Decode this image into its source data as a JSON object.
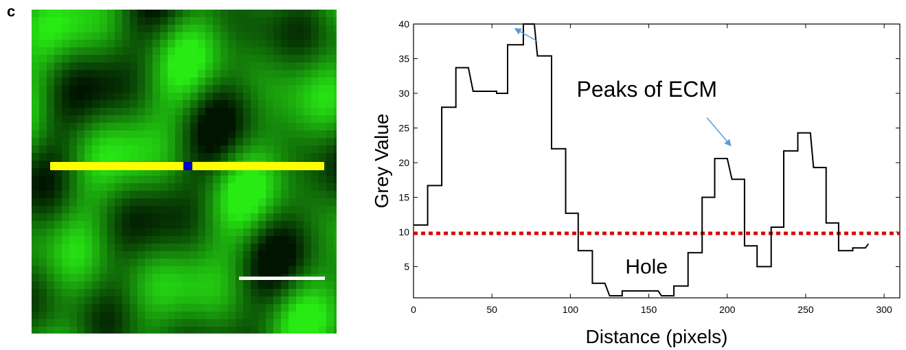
{
  "panel_label": "c",
  "image_panel": {
    "description_colors": {
      "profile_line": "#ffff00",
      "marker": "#0000cc",
      "scale_bar": "#ffffff",
      "signal": "#00e000"
    }
  },
  "chart_data": {
    "type": "line",
    "xlabel": "Distance (pixels)",
    "ylabel": "Grey Value",
    "xlim": [
      0,
      310
    ],
    "ylim": [
      0.5,
      40
    ],
    "xticks": [
      0,
      50,
      100,
      150,
      200,
      250,
      300
    ],
    "yticks": [
      5,
      10,
      15,
      20,
      25,
      30,
      35,
      40
    ],
    "grid": false,
    "series": [
      {
        "color": "#000000",
        "points": [
          [
            0,
            11
          ],
          [
            9,
            11
          ],
          [
            9,
            16.7
          ],
          [
            18,
            16.7
          ],
          [
            18,
            28
          ],
          [
            27,
            28
          ],
          [
            27,
            33.7
          ],
          [
            35,
            33.7
          ],
          [
            38,
            30.3
          ],
          [
            53,
            30.3
          ],
          [
            53,
            30
          ],
          [
            60,
            30
          ],
          [
            60,
            37
          ],
          [
            70,
            37
          ],
          [
            70,
            40
          ],
          [
            77,
            40
          ],
          [
            79,
            35.4
          ],
          [
            88,
            35.4
          ],
          [
            88,
            22
          ],
          [
            97,
            22
          ],
          [
            97,
            12.7
          ],
          [
            105,
            12.7
          ],
          [
            105,
            7.3
          ],
          [
            114,
            7.3
          ],
          [
            114,
            2.6
          ],
          [
            122,
            2.6
          ],
          [
            125,
            0.8
          ],
          [
            133,
            0.8
          ],
          [
            133,
            1.5
          ],
          [
            156,
            1.5
          ],
          [
            158,
            0.8
          ],
          [
            166,
            0.8
          ],
          [
            166,
            2.2
          ],
          [
            175,
            2.2
          ],
          [
            175,
            7
          ],
          [
            184,
            7
          ],
          [
            184,
            15
          ],
          [
            192,
            15
          ],
          [
            192,
            20.6
          ],
          [
            200,
            20.6
          ],
          [
            203,
            17.6
          ],
          [
            211,
            17.6
          ],
          [
            211,
            8
          ],
          [
            219,
            8
          ],
          [
            219,
            5
          ],
          [
            228,
            5
          ],
          [
            228,
            10.7
          ],
          [
            236,
            10.7
          ],
          [
            236,
            21.7
          ],
          [
            245,
            21.7
          ],
          [
            245,
            24.3
          ],
          [
            253,
            24.3
          ],
          [
            255,
            19.3
          ],
          [
            263,
            19.3
          ],
          [
            263,
            11.3
          ],
          [
            271,
            11.3
          ],
          [
            271,
            7.3
          ],
          [
            280,
            7.3
          ],
          [
            280,
            7.7
          ],
          [
            288,
            7.7
          ],
          [
            290,
            8.3
          ]
        ]
      }
    ],
    "threshold": {
      "value": 9.8,
      "color": "#dd0000"
    },
    "annotations": [
      {
        "text": "Peaks of ECM"
      },
      {
        "text": "Hole"
      }
    ],
    "arrows": [
      {
        "from": [
          79,
          37.5
        ],
        "to": [
          65,
          39.3
        ],
        "color": "#5b9bd5"
      },
      {
        "from": [
          187,
          26.5
        ],
        "to": [
          202,
          22.5
        ],
        "color": "#5b9bd5"
      }
    ]
  }
}
